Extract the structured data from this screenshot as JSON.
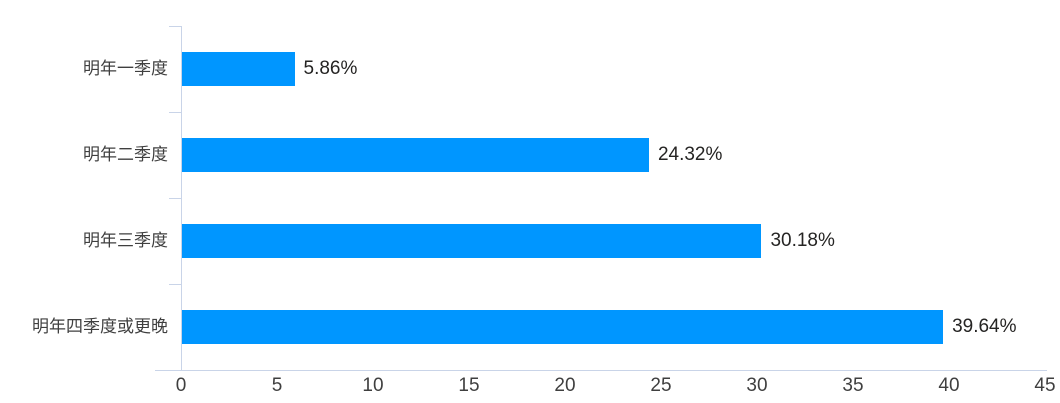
{
  "chart_data": {
    "type": "bar",
    "orientation": "horizontal",
    "title": "",
    "xlabel": "",
    "ylabel": "",
    "grid": "off",
    "legend": "none",
    "categories": [
      "明年一季度",
      "明年二季度",
      "明年三季度",
      "明年四季度或更晚"
    ],
    "values": [
      5.86,
      24.32,
      30.18,
      39.64
    ],
    "data_labels": [
      "5.86%",
      "24.32%",
      "30.18%",
      "39.64%"
    ],
    "x_ticks": [
      "0",
      "5",
      "10",
      "15",
      "20",
      "25",
      "30",
      "35",
      "40",
      "45"
    ],
    "xlim": [
      0,
      45
    ],
    "colors": {
      "bar": "#0096FF",
      "axis_line": "#C9D4E8",
      "data_label": "#252423",
      "axis_label": "#3F3F3F",
      "background": "#FFFFFF"
    }
  }
}
